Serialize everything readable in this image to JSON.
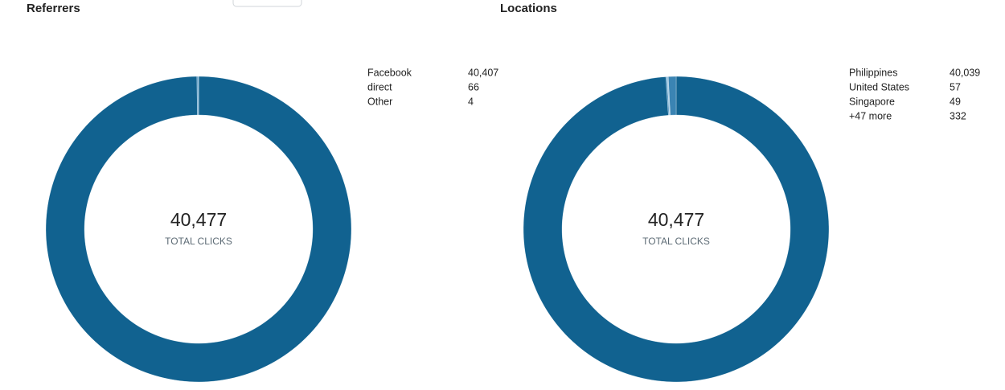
{
  "chart_data": [
    {
      "type": "pie",
      "title": "Referrers",
      "labels": [
        "Facebook",
        "direct",
        "Other"
      ],
      "values": [
        40407,
        66,
        4
      ],
      "value_labels": [
        "40,407",
        "66",
        "4"
      ],
      "colors": [
        "#116290",
        "#5a9cc6",
        "#9cc6e2"
      ],
      "total": {
        "value": 40477,
        "label": "40,477"
      },
      "total_caption": "TOTAL CLICKS"
    },
    {
      "type": "pie",
      "title": "Locations",
      "labels": [
        "Philippines",
        "United States",
        "Singapore",
        "+47 more"
      ],
      "values": [
        40039,
        57,
        49,
        332
      ],
      "value_labels": [
        "40,039",
        "57",
        "49",
        "332"
      ],
      "colors": [
        "#116290",
        "#5a9cc6",
        "#9cc6e2",
        "#3b84b3"
      ],
      "total": {
        "value": 40477,
        "label": "40,477"
      },
      "total_caption": "TOTAL CLICKS"
    }
  ]
}
